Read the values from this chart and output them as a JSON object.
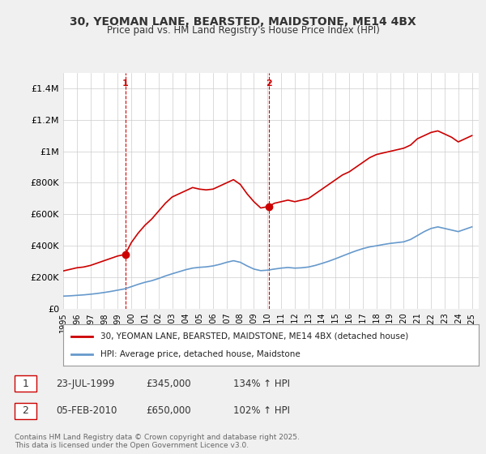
{
  "title": "30, YEOMAN LANE, BEARSTED, MAIDSTONE, ME14 4BX",
  "subtitle": "Price paid vs. HM Land Registry's House Price Index (HPI)",
  "background_color": "#f0f0f0",
  "plot_bg_color": "#ffffff",
  "ylabel": "",
  "ylim": [
    0,
    1500000
  ],
  "yticks": [
    0,
    200000,
    400000,
    600000,
    800000,
    1000000,
    1200000,
    1400000
  ],
  "ytick_labels": [
    "£0",
    "£200K",
    "£400K",
    "£600K",
    "£800K",
    "£1M",
    "£1.2M",
    "£1.4M"
  ],
  "red_color": "#cc0000",
  "blue_color": "#6699cc",
  "marker1_x": 1999.55,
  "marker1_y": 345000,
  "marker2_x": 2010.09,
  "marker2_y": 650000,
  "legend_label_red": "30, YEOMAN LANE, BEARSTED, MAIDSTONE, ME14 4BX (detached house)",
  "legend_label_blue": "HPI: Average price, detached house, Maidstone",
  "annotation1_num": "1",
  "annotation1_date": "23-JUL-1999",
  "annotation1_price": "£345,000",
  "annotation1_hpi": "134% ↑ HPI",
  "annotation2_num": "2",
  "annotation2_date": "05-FEB-2010",
  "annotation2_price": "£650,000",
  "annotation2_hpi": "102% ↑ HPI",
  "footer": "Contains HM Land Registry data © Crown copyright and database right 2025.\nThis data is licensed under the Open Government Licence v3.0.",
  "red_line_data_x": [
    1995.0,
    1995.5,
    1996.0,
    1996.5,
    1997.0,
    1997.5,
    1998.0,
    1998.5,
    1999.0,
    1999.55,
    2000.0,
    2000.5,
    2001.0,
    2001.5,
    2002.0,
    2002.5,
    2003.0,
    2003.5,
    2004.0,
    2004.5,
    2005.0,
    2005.5,
    2006.0,
    2006.5,
    2007.0,
    2007.5,
    2008.0,
    2008.5,
    2009.0,
    2009.5,
    2010.09,
    2010.5,
    2011.0,
    2011.5,
    2012.0,
    2012.5,
    2013.0,
    2013.5,
    2014.0,
    2014.5,
    2015.0,
    2015.5,
    2016.0,
    2016.5,
    2017.0,
    2017.5,
    2018.0,
    2018.5,
    2019.0,
    2019.5,
    2020.0,
    2020.5,
    2021.0,
    2021.5,
    2022.0,
    2022.5,
    2023.0,
    2023.5,
    2024.0,
    2024.5,
    2025.0
  ],
  "red_line_data_y": [
    240000,
    250000,
    260000,
    265000,
    275000,
    290000,
    305000,
    320000,
    335000,
    345000,
    420000,
    480000,
    530000,
    570000,
    620000,
    670000,
    710000,
    730000,
    750000,
    770000,
    760000,
    755000,
    760000,
    780000,
    800000,
    820000,
    790000,
    730000,
    680000,
    640000,
    650000,
    670000,
    680000,
    690000,
    680000,
    690000,
    700000,
    730000,
    760000,
    790000,
    820000,
    850000,
    870000,
    900000,
    930000,
    960000,
    980000,
    990000,
    1000000,
    1010000,
    1020000,
    1040000,
    1080000,
    1100000,
    1120000,
    1130000,
    1110000,
    1090000,
    1060000,
    1080000,
    1100000
  ],
  "blue_line_data_x": [
    1995.0,
    1995.5,
    1996.0,
    1996.5,
    1997.0,
    1997.5,
    1998.0,
    1998.5,
    1999.0,
    1999.5,
    2000.0,
    2000.5,
    2001.0,
    2001.5,
    2002.0,
    2002.5,
    2003.0,
    2003.5,
    2004.0,
    2004.5,
    2005.0,
    2005.5,
    2006.0,
    2006.5,
    2007.0,
    2007.5,
    2008.0,
    2008.5,
    2009.0,
    2009.5,
    2010.0,
    2010.5,
    2011.0,
    2011.5,
    2012.0,
    2012.5,
    2013.0,
    2013.5,
    2014.0,
    2014.5,
    2015.0,
    2015.5,
    2016.0,
    2016.5,
    2017.0,
    2017.5,
    2018.0,
    2018.5,
    2019.0,
    2019.5,
    2020.0,
    2020.5,
    2021.0,
    2021.5,
    2022.0,
    2022.5,
    2023.0,
    2023.5,
    2024.0,
    2024.5,
    2025.0
  ],
  "blue_line_data_y": [
    80000,
    82000,
    85000,
    88000,
    92000,
    97000,
    103000,
    110000,
    118000,
    126000,
    140000,
    155000,
    168000,
    178000,
    192000,
    208000,
    222000,
    235000,
    248000,
    258000,
    263000,
    266000,
    272000,
    282000,
    295000,
    305000,
    295000,
    272000,
    252000,
    242000,
    245000,
    252000,
    258000,
    262000,
    258000,
    260000,
    265000,
    275000,
    288000,
    302000,
    318000,
    335000,
    352000,
    368000,
    382000,
    393000,
    400000,
    408000,
    415000,
    420000,
    425000,
    440000,
    465000,
    490000,
    510000,
    520000,
    510000,
    500000,
    490000,
    505000,
    520000
  ],
  "xlim": [
    1995.0,
    2025.5
  ],
  "xtick_years": [
    1995,
    1996,
    1997,
    1998,
    1999,
    2000,
    2001,
    2002,
    2003,
    2004,
    2005,
    2006,
    2007,
    2008,
    2009,
    2010,
    2011,
    2012,
    2013,
    2014,
    2015,
    2016,
    2017,
    2018,
    2019,
    2020,
    2021,
    2022,
    2023,
    2024,
    2025
  ]
}
